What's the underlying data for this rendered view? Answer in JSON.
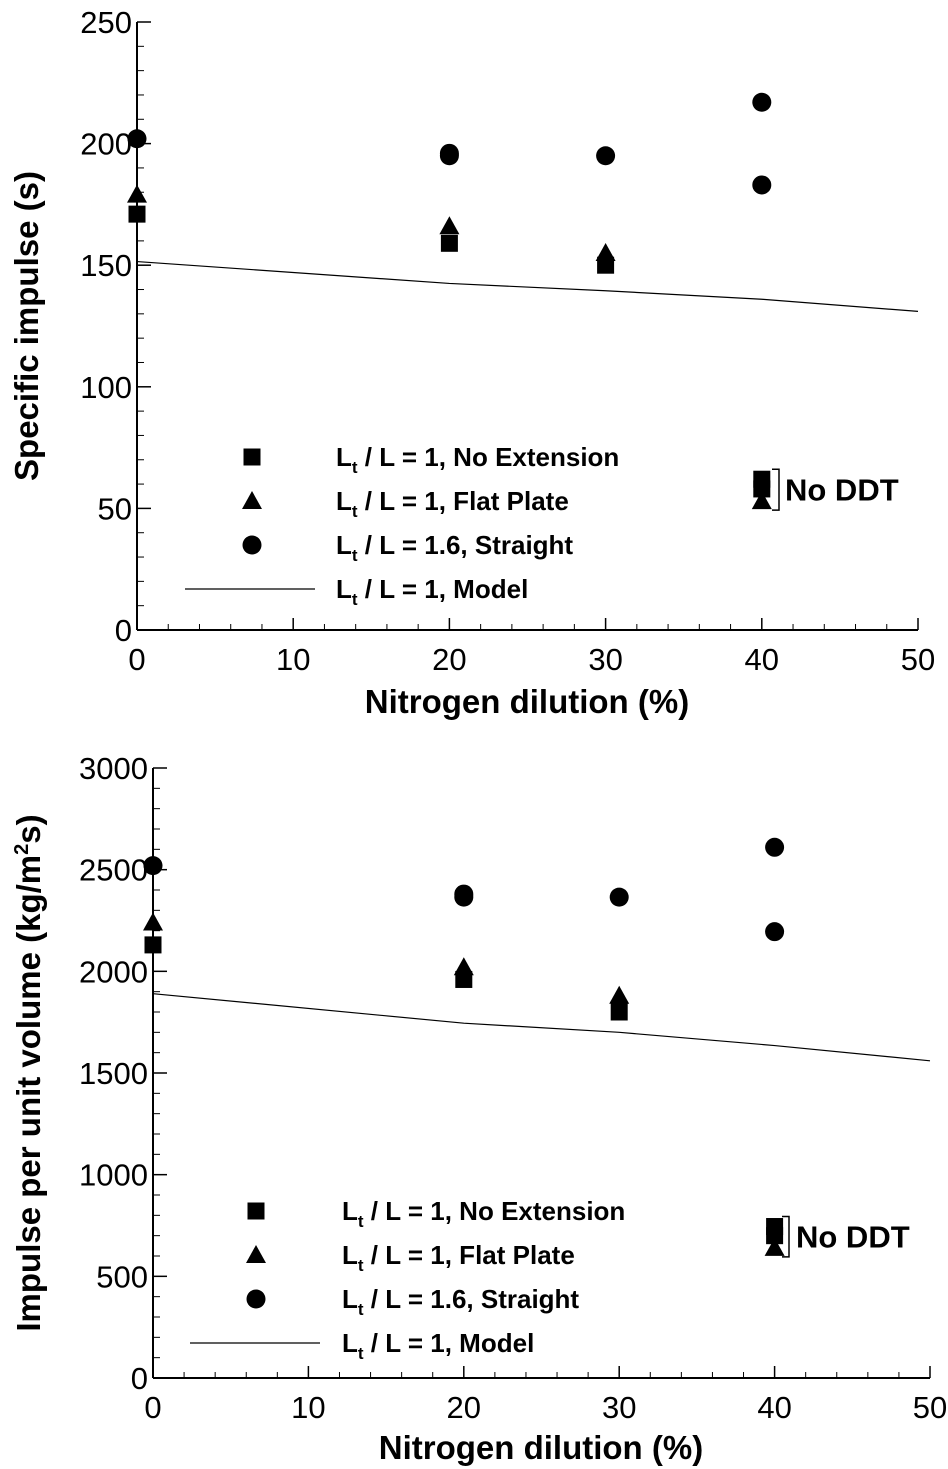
{
  "chart_data": [
    {
      "type": "scatter",
      "xlabel": "Nitrogen dilution (%)",
      "ylabel": "Specific impulse (s)",
      "xlim": [
        0,
        50
      ],
      "ylim": [
        0,
        250
      ],
      "xticks": [
        0,
        10,
        20,
        30,
        40,
        50
      ],
      "yticks": [
        0,
        50,
        100,
        150,
        200,
        250
      ],
      "series": [
        {
          "name_prefix": "L",
          "name_sub": "t",
          "name_rest": " / L = 1, No Extension",
          "marker": "square",
          "points": [
            [
              0,
              171
            ],
            [
              20,
              159
            ],
            [
              30,
              150
            ],
            [
              40,
              62
            ],
            [
              40,
              58
            ]
          ]
        },
        {
          "name_prefix": "L",
          "name_sub": "t",
          "name_rest": " / L = 1, Flat Plate",
          "marker": "triangle",
          "points": [
            [
              0,
              179
            ],
            [
              20,
              166
            ],
            [
              30,
              155
            ],
            [
              40,
              53
            ]
          ]
        },
        {
          "name_prefix": "L",
          "name_sub": "t",
          "name_rest": " / L = 1.6, Straight",
          "marker": "circle",
          "points": [
            [
              0,
              202
            ],
            [
              20,
              196
            ],
            [
              20,
              195
            ],
            [
              30,
              195
            ],
            [
              40,
              217
            ],
            [
              40,
              183
            ]
          ]
        },
        {
          "name_prefix": "L",
          "name_sub": "t",
          "name_rest": " / L = 1, Model",
          "marker": "line",
          "points": [
            [
              0,
              151.5
            ],
            [
              20,
              142.5
            ],
            [
              30,
              139.5
            ],
            [
              40,
              136
            ],
            [
              50,
              131
            ]
          ]
        }
      ],
      "annotation": {
        "text": "No DDT",
        "x": 40,
        "y_range": [
          53,
          62
        ]
      }
    },
    {
      "type": "scatter",
      "xlabel": "Nitrogen dilution (%)",
      "ylabel_main": "Impulse per unit volume (kg/m",
      "ylabel_sup": "2",
      "ylabel_tail": "s)",
      "xlim": [
        0,
        50
      ],
      "ylim": [
        0,
        3000
      ],
      "xticks": [
        0,
        10,
        20,
        30,
        40,
        50
      ],
      "yticks": [
        0,
        500,
        1000,
        1500,
        2000,
        2500,
        3000
      ],
      "series": [
        {
          "name_prefix": "L",
          "name_sub": "t",
          "name_rest": " / L = 1, No Extension",
          "marker": "square",
          "points": [
            [
              0,
              2130
            ],
            [
              20,
              1960
            ],
            [
              30,
              1800
            ],
            [
              40,
              745
            ],
            [
              40,
              700
            ]
          ]
        },
        {
          "name_prefix": "L",
          "name_sub": "t",
          "name_rest": " / L = 1, Flat Plate",
          "marker": "triangle",
          "points": [
            [
              0,
              2240
            ],
            [
              20,
              2020
            ],
            [
              30,
              1880
            ],
            [
              40,
              640
            ]
          ]
        },
        {
          "name_prefix": "L",
          "name_sub": "t",
          "name_rest": " / L = 1.6, Straight",
          "marker": "circle",
          "points": [
            [
              0,
              2520
            ],
            [
              20,
              2380
            ],
            [
              20,
              2365
            ],
            [
              30,
              2365
            ],
            [
              40,
              2610
            ],
            [
              40,
              2195
            ]
          ]
        },
        {
          "name_prefix": "L",
          "name_sub": "t",
          "name_rest": " / L = 1, Model",
          "marker": "line",
          "points": [
            [
              0,
              1890
            ],
            [
              20,
              1745
            ],
            [
              30,
              1700
            ],
            [
              40,
              1635
            ],
            [
              50,
              1560
            ]
          ]
        }
      ],
      "annotation": {
        "text": "No DDT",
        "x": 40,
        "y_range": [
          640,
          745
        ]
      }
    }
  ]
}
